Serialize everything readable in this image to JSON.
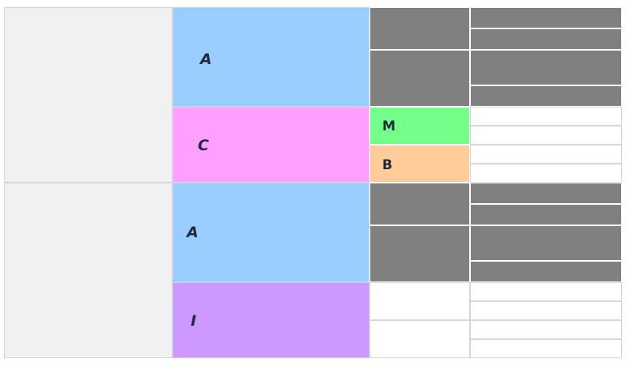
{
  "blocks": {
    "top_a": "A",
    "c": "C",
    "m": "M",
    "b": "B",
    "bottom_a": "A",
    "i": "I"
  },
  "colors": {
    "gray": "#f0f0f0",
    "blue": "#99ccff",
    "pink": "#ffa0ff",
    "purple": "#cc99ff",
    "dark": "#808080",
    "green": "#73ff8a",
    "orange": "#ffcc99",
    "white": "#ffffff"
  }
}
